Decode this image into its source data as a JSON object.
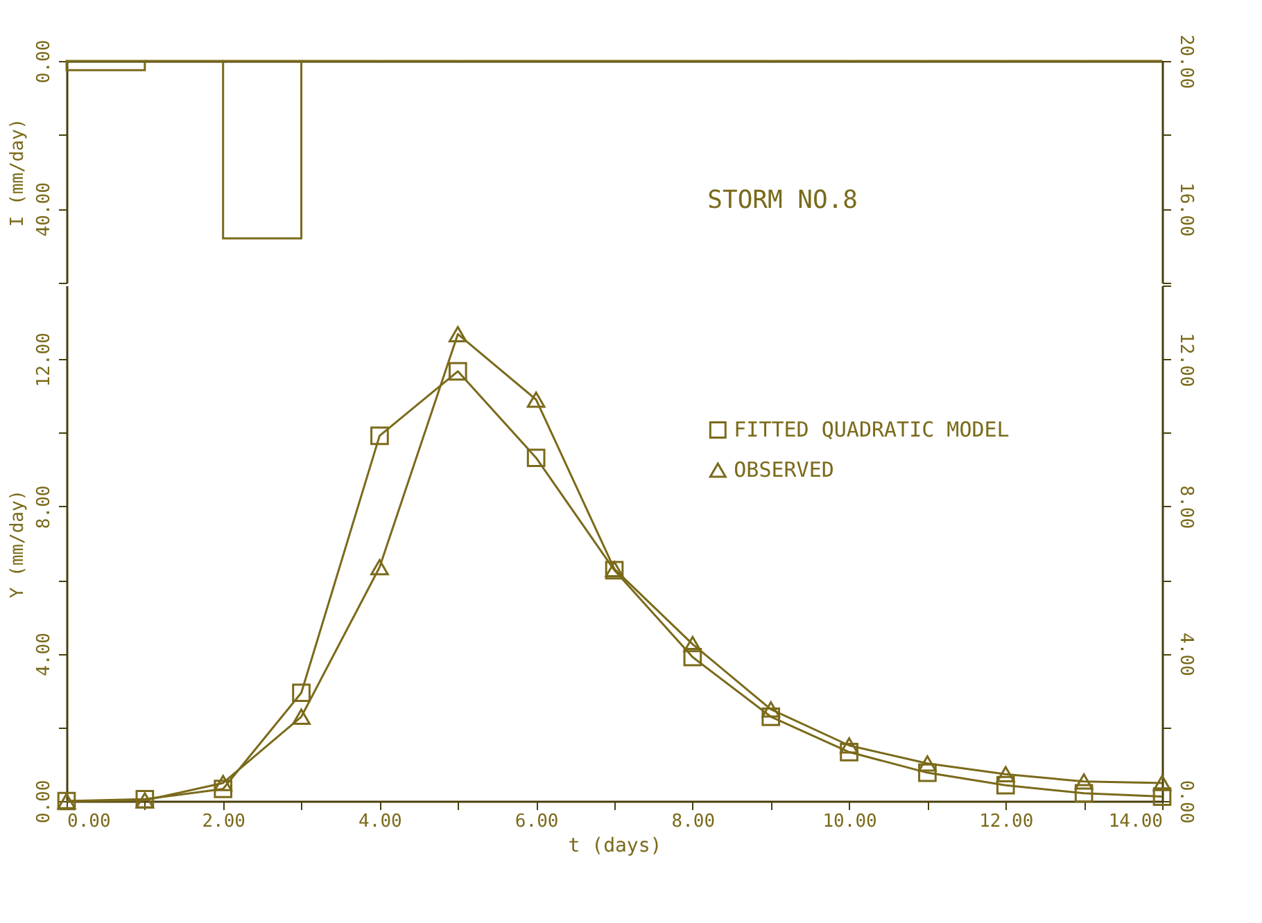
{
  "chart_data": [
    {
      "type": "histogram",
      "ylabel": "I (mm/day)",
      "annotations": [
        "STORM NO.8"
      ],
      "bins": [
        0,
        1,
        2,
        3,
        4,
        5,
        6,
        7,
        8,
        9,
        10,
        11,
        12,
        13,
        14
      ],
      "values": [
        2.5,
        0,
        48,
        0,
        0,
        0,
        0,
        0,
        0,
        0,
        0,
        0,
        0,
        0
      ],
      "color": "#7a6a1a",
      "xlim": [
        0,
        14
      ],
      "ylim": [
        60,
        0
      ],
      "yticks": [
        {
          "value": 0,
          "label": "0.00"
        },
        {
          "value": 20,
          "label": null
        },
        {
          "value": 40,
          "label": "40.00"
        },
        {
          "value": 60,
          "label": null
        }
      ],
      "y2lim": [
        14,
        20
      ],
      "y2ticks": [
        {
          "value": 14,
          "label": null
        },
        {
          "value": 16,
          "label": "16.00"
        },
        {
          "value": 18,
          "label": null
        },
        {
          "value": 20,
          "label": "20.00"
        }
      ],
      "tick_labels": "y"
    },
    {
      "type": "line",
      "xlabel": "t (days)",
      "ylabel": "Y (mm/day)",
      "x": [
        0,
        1,
        2,
        3,
        4,
        5,
        6,
        7,
        8,
        9,
        10,
        11,
        12,
        13,
        14
      ],
      "series": [
        {
          "name": "FITTED QUADRATIC MODEL",
          "color": "#7a6a1a",
          "marker": "square",
          "values": [
            0,
            0.05,
            0.33,
            2.94,
            9.92,
            11.67,
            9.32,
            6.27,
            3.91,
            2.29,
            1.33,
            0.77,
            0.43,
            0.21,
            0.12
          ]
        },
        {
          "name": "OBSERVED",
          "color": "#7a6a1a",
          "marker": "triangle",
          "values": [
            0,
            0.02,
            0.49,
            2.29,
            6.35,
            12.68,
            10.9,
            6.3,
            4.26,
            2.49,
            1.51,
            1.02,
            0.73,
            0.53,
            0.49
          ]
        }
      ],
      "xlim": [
        0,
        14
      ],
      "xticks": [
        {
          "value": 0,
          "label": "0.00"
        },
        {
          "value": 1,
          "label": null
        },
        {
          "value": 2,
          "label": "2.00"
        },
        {
          "value": 3,
          "label": null
        },
        {
          "value": 4,
          "label": "4.00"
        },
        {
          "value": 5,
          "label": null
        },
        {
          "value": 6,
          "label": "6.00"
        },
        {
          "value": 7,
          "label": null
        },
        {
          "value": 8,
          "label": "8.00"
        },
        {
          "value": 9,
          "label": null
        },
        {
          "value": 10,
          "label": "10.00"
        },
        {
          "value": 11,
          "label": null
        },
        {
          "value": 12,
          "label": "12.00"
        },
        {
          "value": 13,
          "label": null
        },
        {
          "value": 14,
          "label": "14.00"
        }
      ],
      "ylim": [
        0,
        14
      ],
      "yticks": [
        {
          "value": 0,
          "label": "0.00"
        },
        {
          "value": 2,
          "label": null
        },
        {
          "value": 4,
          "label": "4.00"
        },
        {
          "value": 6,
          "label": null
        },
        {
          "value": 8,
          "label": "8.00"
        },
        {
          "value": 10,
          "label": null
        },
        {
          "value": 12,
          "label": "12.00"
        }
      ],
      "y2lim": [
        0,
        14
      ],
      "y2ticks": [
        {
          "value": 0,
          "label": "0.00"
        },
        {
          "value": 2,
          "label": null
        },
        {
          "value": 4,
          "label": "4.00"
        },
        {
          "value": 6,
          "label": null
        },
        {
          "value": 8,
          "label": "8.00"
        },
        {
          "value": 10,
          "label": null
        },
        {
          "value": 12,
          "label": "12.00"
        },
        {
          "value": 14,
          "label": null
        }
      ],
      "legend": "top right"
    }
  ]
}
